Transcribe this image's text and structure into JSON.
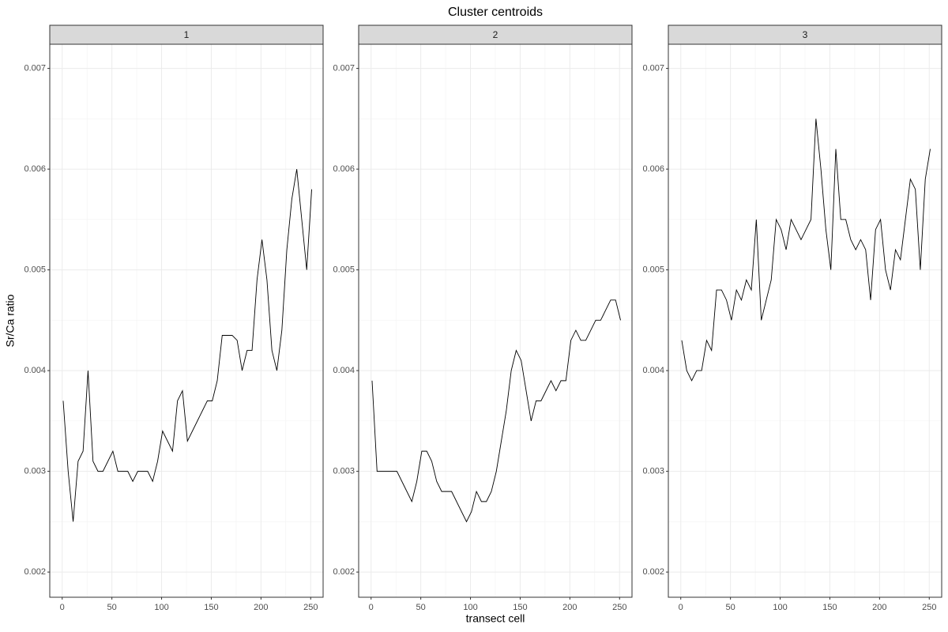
{
  "title": "Cluster centroids",
  "x_label": "transect cell",
  "y_label": "Sr/Ca ratio",
  "chart_data": [
    {
      "type": "line",
      "title": "1",
      "color": "#000000",
      "grid": true,
      "xlim": [
        -12.5,
        262.5
      ],
      "xticks": [
        0,
        50,
        100,
        150,
        200,
        250
      ],
      "ylim": [
        0.00175,
        0.00724
      ],
      "yticks": [
        0.002,
        0.003,
        0.004,
        0.005,
        0.006,
        0.007
      ],
      "x": [
        1,
        6,
        11,
        16,
        21,
        26,
        31,
        36,
        41,
        46,
        51,
        56,
        61,
        66,
        71,
        76,
        81,
        86,
        91,
        96,
        101,
        106,
        111,
        116,
        121,
        126,
        131,
        136,
        141,
        146,
        151,
        156,
        161,
        166,
        171,
        176,
        181,
        186,
        191,
        196,
        201,
        206,
        211,
        216,
        221,
        226,
        231,
        236,
        241,
        246,
        251
      ],
      "values": [
        0.0037,
        0.003,
        0.0025,
        0.0031,
        0.0032,
        0.004,
        0.0031,
        0.003,
        0.003,
        0.0031,
        0.0032,
        0.003,
        0.003,
        0.003,
        0.0029,
        0.003,
        0.003,
        0.003,
        0.0029,
        0.0031,
        0.0034,
        0.0033,
        0.0032,
        0.0037,
        0.0038,
        0.0033,
        0.0034,
        0.0035,
        0.0036,
        0.0037,
        0.0037,
        0.0039,
        0.00435,
        0.00435,
        0.00435,
        0.0043,
        0.004,
        0.0042,
        0.0042,
        0.0049,
        0.0053,
        0.0049,
        0.0042,
        0.004,
        0.0044,
        0.0052,
        0.0057,
        0.006,
        0.0055,
        0.005,
        0.0058
      ]
    },
    {
      "type": "line",
      "title": "2",
      "color": "#000000",
      "grid": true,
      "xlim": [
        -12.5,
        262.5
      ],
      "xticks": [
        0,
        50,
        100,
        150,
        200,
        250
      ],
      "ylim": [
        0.00175,
        0.00724
      ],
      "yticks": [
        0.002,
        0.003,
        0.004,
        0.005,
        0.006,
        0.007
      ],
      "x": [
        1,
        6,
        11,
        16,
        21,
        26,
        31,
        36,
        41,
        46,
        51,
        56,
        61,
        66,
        71,
        76,
        81,
        86,
        91,
        96,
        101,
        106,
        111,
        116,
        121,
        126,
        131,
        136,
        141,
        146,
        151,
        156,
        161,
        166,
        171,
        176,
        181,
        186,
        191,
        196,
        201,
        206,
        211,
        216,
        221,
        226,
        231,
        236,
        241,
        246,
        251
      ],
      "values": [
        0.0039,
        0.003,
        0.003,
        0.003,
        0.003,
        0.003,
        0.0029,
        0.0028,
        0.0027,
        0.0029,
        0.0032,
        0.0032,
        0.0031,
        0.0029,
        0.0028,
        0.0028,
        0.0028,
        0.0027,
        0.0026,
        0.0025,
        0.0026,
        0.0028,
        0.0027,
        0.0027,
        0.0028,
        0.003,
        0.0033,
        0.0036,
        0.004,
        0.0042,
        0.0041,
        0.0038,
        0.0035,
        0.0037,
        0.0037,
        0.0038,
        0.0039,
        0.0038,
        0.0039,
        0.0039,
        0.0043,
        0.0044,
        0.0043,
        0.0043,
        0.0044,
        0.0045,
        0.0045,
        0.0046,
        0.0047,
        0.0047,
        0.0045
      ]
    },
    {
      "type": "line",
      "title": "3",
      "color": "#000000",
      "grid": true,
      "xlim": [
        -12.5,
        262.5
      ],
      "xticks": [
        0,
        50,
        100,
        150,
        200,
        250
      ],
      "ylim": [
        0.00175,
        0.00724
      ],
      "yticks": [
        0.002,
        0.003,
        0.004,
        0.005,
        0.006,
        0.007
      ],
      "x": [
        1,
        6,
        11,
        16,
        21,
        26,
        31,
        36,
        41,
        46,
        51,
        56,
        61,
        66,
        71,
        76,
        81,
        86,
        91,
        96,
        101,
        106,
        111,
        116,
        121,
        126,
        131,
        136,
        141,
        146,
        151,
        156,
        161,
        166,
        171,
        176,
        181,
        186,
        191,
        196,
        201,
        206,
        211,
        216,
        221,
        226,
        231,
        236,
        241,
        246,
        251
      ],
      "values": [
        0.0043,
        0.004,
        0.0039,
        0.004,
        0.004,
        0.0043,
        0.0042,
        0.0048,
        0.0048,
        0.0047,
        0.0045,
        0.0048,
        0.0047,
        0.0049,
        0.0048,
        0.0055,
        0.0045,
        0.0047,
        0.0049,
        0.0055,
        0.0054,
        0.0052,
        0.0055,
        0.0054,
        0.0053,
        0.0054,
        0.0055,
        0.0065,
        0.006,
        0.0054,
        0.005,
        0.0062,
        0.0055,
        0.0055,
        0.0053,
        0.0052,
        0.0053,
        0.0052,
        0.0047,
        0.0054,
        0.0055,
        0.005,
        0.0048,
        0.0052,
        0.0051,
        0.0055,
        0.0059,
        0.0058,
        0.005,
        0.0059,
        0.0062
      ]
    }
  ]
}
